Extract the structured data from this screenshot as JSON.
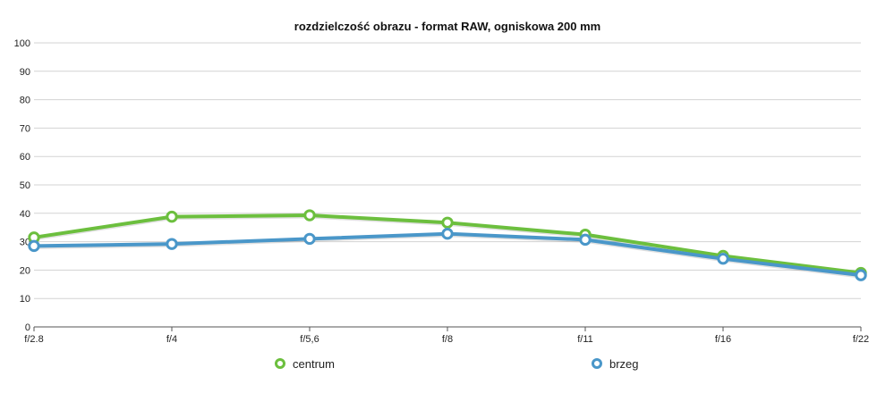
{
  "chart_data": {
    "type": "line",
    "title": "rozdzielczość obrazu - format RAW, ogniskowa 200 mm",
    "xlabel": "",
    "ylabel": "",
    "categories": [
      "f/2.8",
      "f/4",
      "f/5,6",
      "f/8",
      "f/11",
      "f/16",
      "f/22"
    ],
    "ylim": [
      0,
      100
    ],
    "yticks": [
      0,
      10,
      20,
      30,
      40,
      50,
      60,
      70,
      80,
      90,
      100
    ],
    "grid": true,
    "legend_position": "bottom",
    "series": [
      {
        "name": "centrum",
        "color": "#6cbf3e",
        "values": [
          31.5,
          38.8,
          39.3,
          36.7,
          32.5,
          25.0,
          19.0
        ]
      },
      {
        "name": "brzeg",
        "color": "#4a97c9",
        "values": [
          28.5,
          29.2,
          31.0,
          32.8,
          30.7,
          24.0,
          18.2
        ]
      }
    ]
  }
}
